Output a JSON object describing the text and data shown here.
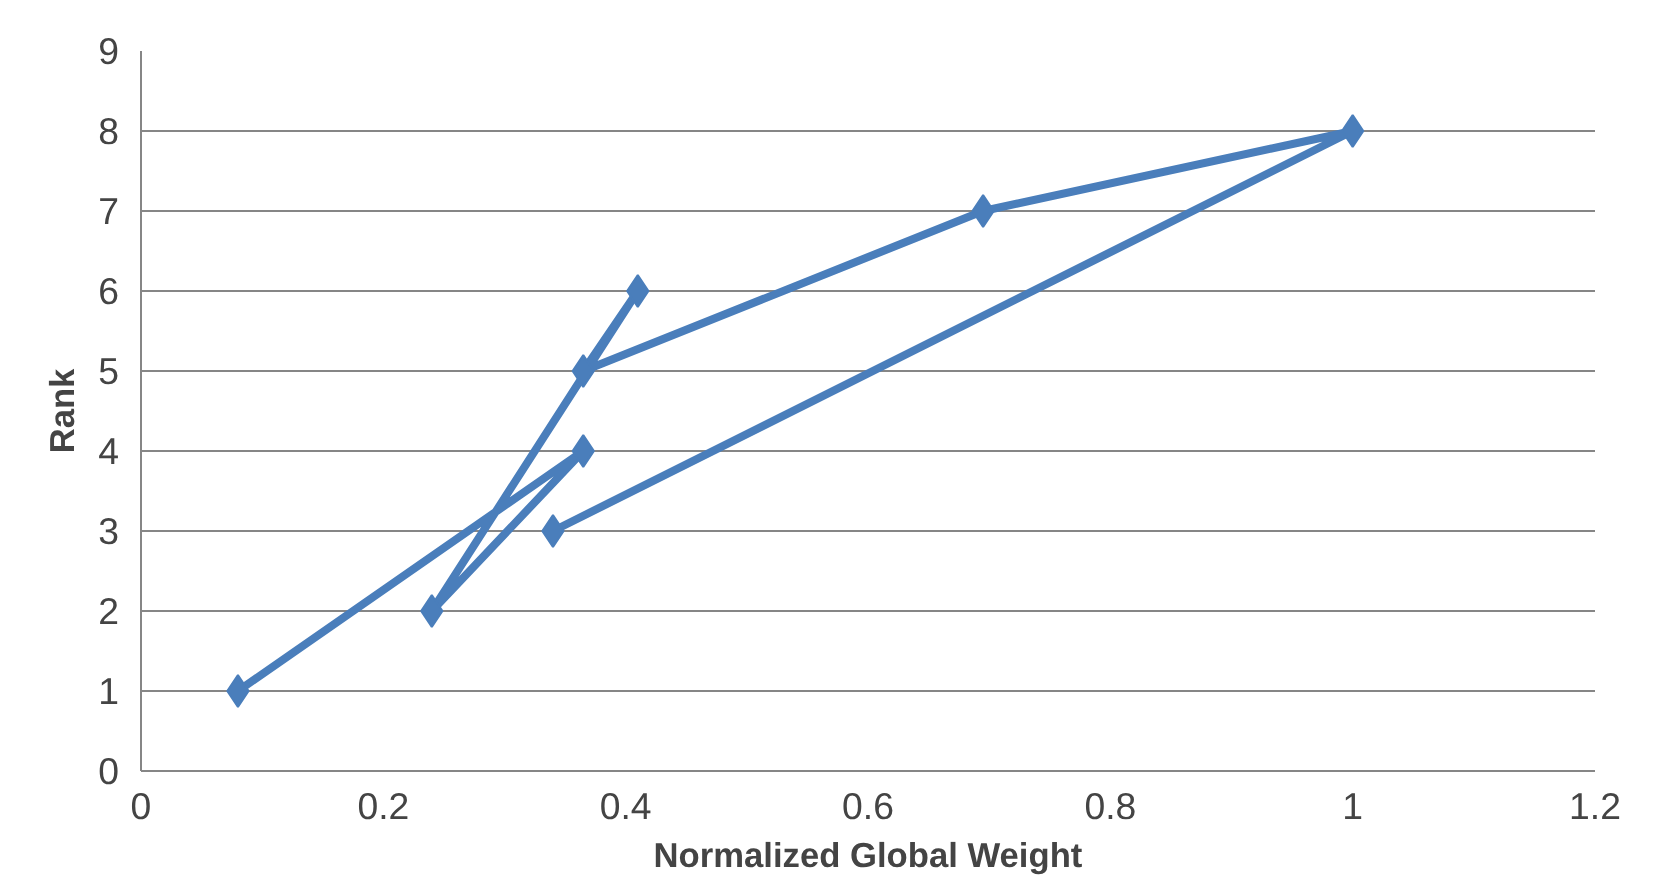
{
  "chart_data": {
    "type": "line",
    "xlabel": "Normalized Global Weight",
    "ylabel": "Rank",
    "x": [
      0.08,
      0.365,
      0.24,
      0.41,
      0.365,
      0.695,
      1.0,
      0.34
    ],
    "series": [
      {
        "color": "#4a7ebb",
        "values": [
          1,
          4,
          2,
          6,
          5,
          7,
          8,
          3
        ]
      }
    ],
    "xlim": [
      0,
      1.2
    ],
    "xticks": [
      0,
      0.2,
      0.4,
      0.6,
      0.8,
      1,
      1.2
    ],
    "ylim": [
      0,
      9
    ],
    "yticks": [
      0,
      1,
      2,
      3,
      4,
      5,
      6,
      7,
      8,
      9
    ],
    "grid": "y",
    "marker": "diamond",
    "line_style": "solid"
  }
}
